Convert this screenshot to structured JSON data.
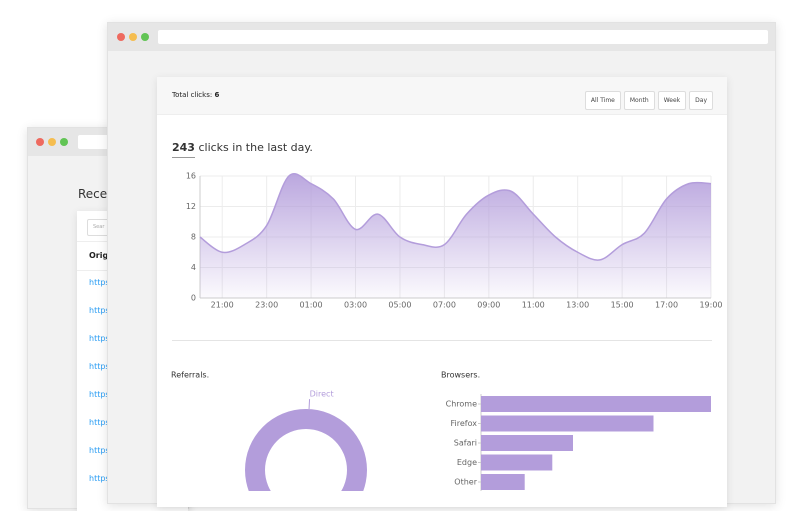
{
  "back_window": {
    "heading": "Recen",
    "search_placeholder": "Sear",
    "table": {
      "header": "Origi",
      "rows": [
        "https:",
        "https:",
        "https:",
        "https:",
        "https:",
        "https:",
        "https:",
        "https:"
      ]
    }
  },
  "front_window": {
    "total_label": "Total clicks:",
    "total_value": "6",
    "filters": [
      "All Time",
      "Month",
      "Week",
      "Day"
    ],
    "summary_count": "243",
    "summary_text": "clicks in the last day."
  },
  "chart_data": [
    {
      "type": "area",
      "categories": [
        null,
        "21:00",
        null,
        "23:00",
        null,
        "01:00",
        null,
        "03:00",
        null,
        "05:00",
        null,
        "07:00",
        null,
        "09:00",
        null,
        "11:00",
        null,
        "13:00",
        null,
        "15:00",
        null,
        "17:00",
        null,
        "19:00"
      ],
      "values": [
        8,
        6,
        7,
        9.5,
        16,
        15,
        13,
        9,
        11,
        8,
        7,
        7,
        11,
        13.5,
        14,
        11,
        8,
        6,
        5,
        7,
        8.5,
        13,
        15,
        15
      ],
      "ylim": [
        0,
        16
      ],
      "yticks": [
        0,
        4,
        8,
        12,
        16
      ],
      "grid": true,
      "color": "#b39ddb"
    },
    {
      "type": "pie",
      "title": "Referrals.",
      "categories": [
        "Direct"
      ],
      "values": [
        100
      ],
      "color": "#b39ddb"
    },
    {
      "type": "hbar",
      "title": "Browsers.",
      "categories": [
        "Chrome",
        "Firefox",
        "Safari",
        "Edge",
        "Other"
      ],
      "values": [
        10,
        7.5,
        4,
        3.1,
        1.9
      ],
      "xlim": [
        0,
        10
      ],
      "color": "#b39ddb"
    }
  ]
}
